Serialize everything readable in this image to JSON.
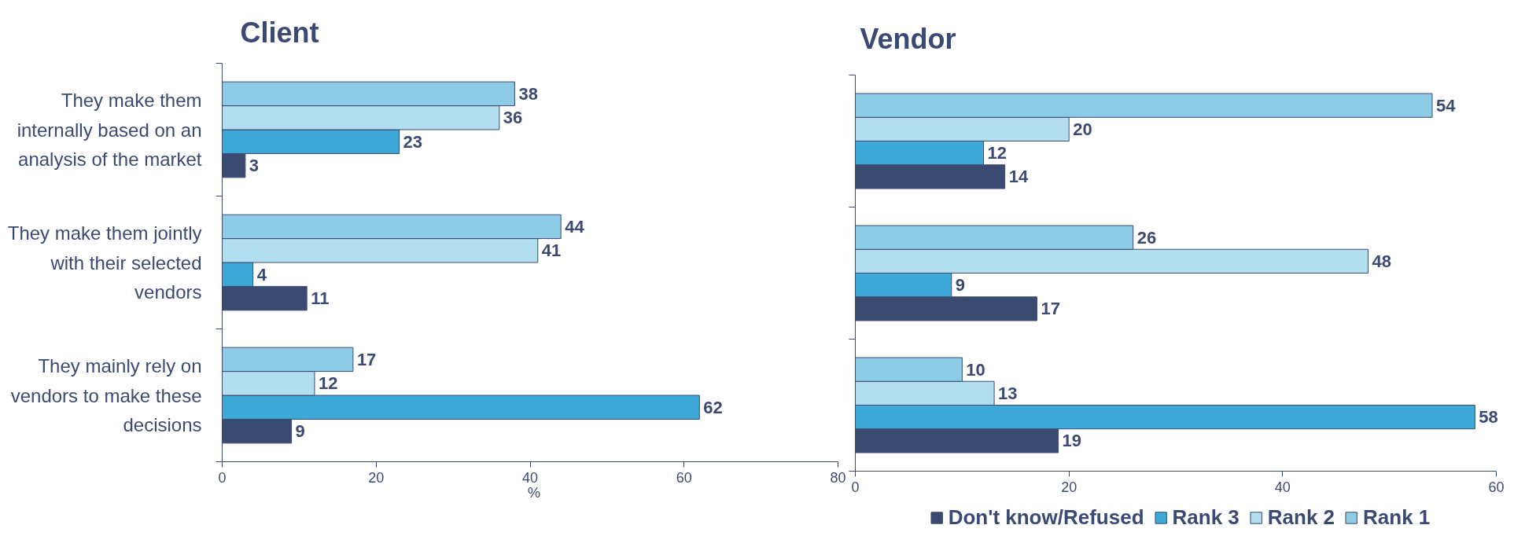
{
  "chart_data": [
    {
      "type": "bar",
      "orientation": "horizontal",
      "title": "Client",
      "xlabel": "%",
      "categories": [
        "They make them internally based on an analysis of the market",
        "They make them jointly with their selected vendors",
        "They mainly rely on vendors to make these decisions"
      ],
      "series": [
        {
          "color": "#3a4a70",
          "values": [
            3,
            11,
            9
          ]
        },
        {
          "color": "#3ea8d8",
          "values": [
            23,
            4,
            62
          ]
        },
        {
          "color": "#b3def0",
          "values": [
            36,
            41,
            12
          ]
        },
        {
          "color": "#8ecbe6",
          "values": [
            38,
            44,
            17
          ]
        }
      ],
      "xlim": [
        0,
        80
      ],
      "xticks": [
        0,
        20,
        40,
        60,
        80
      ],
      "data_labels": true
    },
    {
      "type": "bar",
      "orientation": "horizontal",
      "title": "Vendor",
      "categories": [
        null,
        null,
        null
      ],
      "series": [
        {
          "name": "Don't know/Refused",
          "color": "#3a4a70",
          "values": [
            14,
            17,
            19
          ]
        },
        {
          "name": "Rank 3",
          "color": "#3ea8d8",
          "values": [
            12,
            9,
            58
          ]
        },
        {
          "name": "Rank 2",
          "color": "#b3def0",
          "values": [
            20,
            48,
            13
          ]
        },
        {
          "name": "Rank 1",
          "color": "#8ecbe6",
          "values": [
            54,
            26,
            10
          ]
        }
      ],
      "xlim": [
        0,
        60
      ],
      "xticks": [
        0,
        20,
        40,
        60
      ],
      "data_labels": true,
      "legend": "bottom",
      "tick_labels": "x"
    }
  ]
}
